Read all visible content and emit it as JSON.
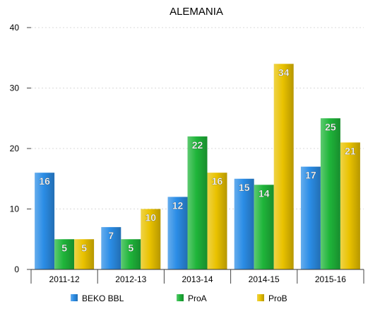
{
  "chart_data": {
    "type": "bar",
    "title": "ALEMANIA",
    "xlabel": "",
    "ylabel": "",
    "categories": [
      "2011-12",
      "2012-13",
      "2013-14",
      "2014-15",
      "2015-16"
    ],
    "series": [
      {
        "name": "BEKO BBL",
        "values": [
          16,
          7,
          12,
          15,
          17
        ],
        "color": "#2b8de6"
      },
      {
        "name": "ProA",
        "values": [
          5,
          5,
          22,
          14,
          25
        ],
        "color": "#1fb53a"
      },
      {
        "name": "ProB",
        "values": [
          5,
          10,
          16,
          34,
          21
        ],
        "color": "#e9c200"
      }
    ],
    "ylim": [
      0,
      40
    ],
    "yticks": [
      0,
      10,
      20,
      30,
      40
    ],
    "grid": true,
    "legend": "bottom",
    "data_labels": true
  }
}
